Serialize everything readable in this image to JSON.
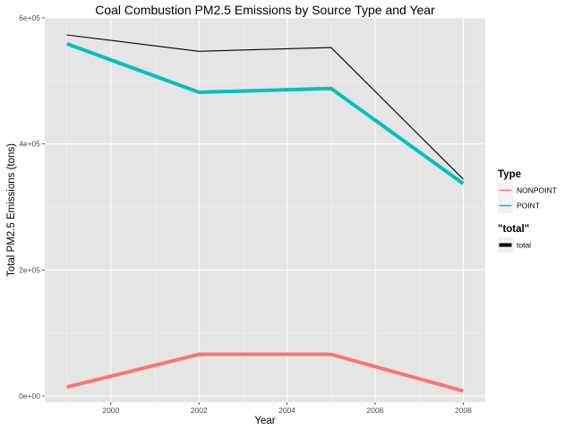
{
  "chart_data": {
    "type": "line",
    "title": "Coal Combustion PM2.5 Emissions by Source Type and Year",
    "xlabel": "Year",
    "ylabel": "Total PM2.5 Emissions (tons)",
    "xlim": [
      1998.5,
      2008.5
    ],
    "ylim": [
      -10000,
      600000
    ],
    "x_ticks": [
      2000,
      2002,
      2004,
      2006,
      2008
    ],
    "x_tick_labels": [
      "2000",
      "2002",
      "2004",
      "2006",
      "2008"
    ],
    "y_ticks": [
      0,
      200000,
      400000,
      600000
    ],
    "y_tick_labels": [
      "0e+00",
      "2e+05",
      "4e+05",
      "6e+05"
    ],
    "x": [
      1999,
      2002,
      2005,
      2008
    ],
    "series": [
      {
        "name": "NONPOINT",
        "values": [
          14000,
          66000,
          66000,
          8000
        ],
        "color": "#F8766D",
        "group": "Type"
      },
      {
        "name": "POINT",
        "values": [
          559000,
          482000,
          488000,
          337000
        ],
        "color": "#00BFC4",
        "group": "Type"
      },
      {
        "name": "total",
        "values": [
          573000,
          547000,
          553000,
          344000
        ],
        "color": "#000000",
        "group": "\"total\""
      }
    ],
    "legend": [
      {
        "title": "Type",
        "items": [
          "NONPOINT",
          "POINT"
        ]
      },
      {
        "title": "\"total\"",
        "items": [
          "total"
        ]
      }
    ],
    "legend_position": "right",
    "grid": true,
    "panel_background": "#E5E5E5",
    "grid_color": "#FFFFFF"
  }
}
